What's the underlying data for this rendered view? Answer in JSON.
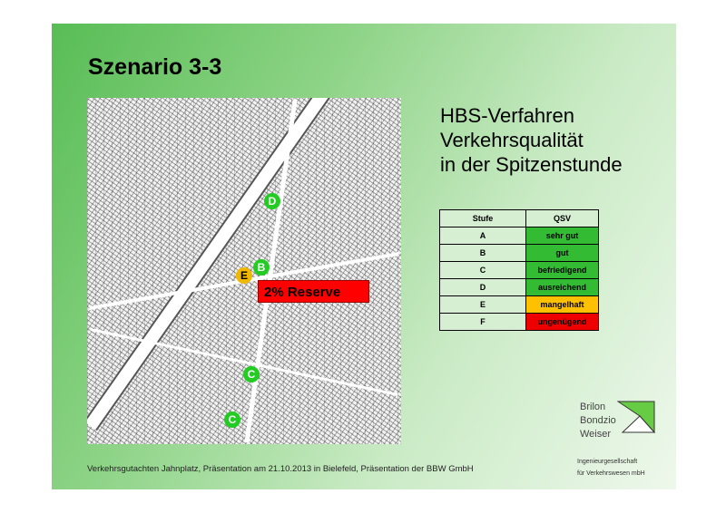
{
  "slide": {
    "title": "Szenario 3-3",
    "heading_lines": [
      "HBS-Verfahren",
      "Verkehrsqualität",
      "in der Spitzenstunde"
    ],
    "map": {
      "markers": [
        {
          "label": "D",
          "color": "#22cc22"
        },
        {
          "label": "B",
          "color": "#22cc22"
        },
        {
          "label": "E",
          "color": "#f0b800"
        },
        {
          "label": "C",
          "color": "#22cc22"
        },
        {
          "label": "C",
          "color": "#22cc22"
        }
      ],
      "callout": "2% Reserve",
      "callout_color": "#ff0000"
    },
    "table": {
      "headers": [
        "Stufe",
        "QSV"
      ],
      "rows": [
        {
          "stufe": "A",
          "qsv": "sehr gut",
          "color": "#33bb33"
        },
        {
          "stufe": "B",
          "qsv": "gut",
          "color": "#33bb33"
        },
        {
          "stufe": "C",
          "qsv": "befriedigend",
          "color": "#33bb33"
        },
        {
          "stufe": "D",
          "qsv": "ausreichend",
          "color": "#33bb33"
        },
        {
          "stufe": "E",
          "qsv": "mangelhaft",
          "color": "#ffc000"
        },
        {
          "stufe": "F",
          "qsv": "ungenügend",
          "color": "#ee0000"
        }
      ]
    },
    "footer": "Verkehrsgutachten Jahnplatz, Präsentation am 21.10.2013 in Bielefeld, Präsentation der BBW GmbH",
    "logo": {
      "lines": [
        "Brilon",
        "Bondzio",
        "Weiser"
      ],
      "company_lines": [
        "Ingenieurgesellschaft",
        "für Verkehrswesen mbH"
      ]
    }
  }
}
